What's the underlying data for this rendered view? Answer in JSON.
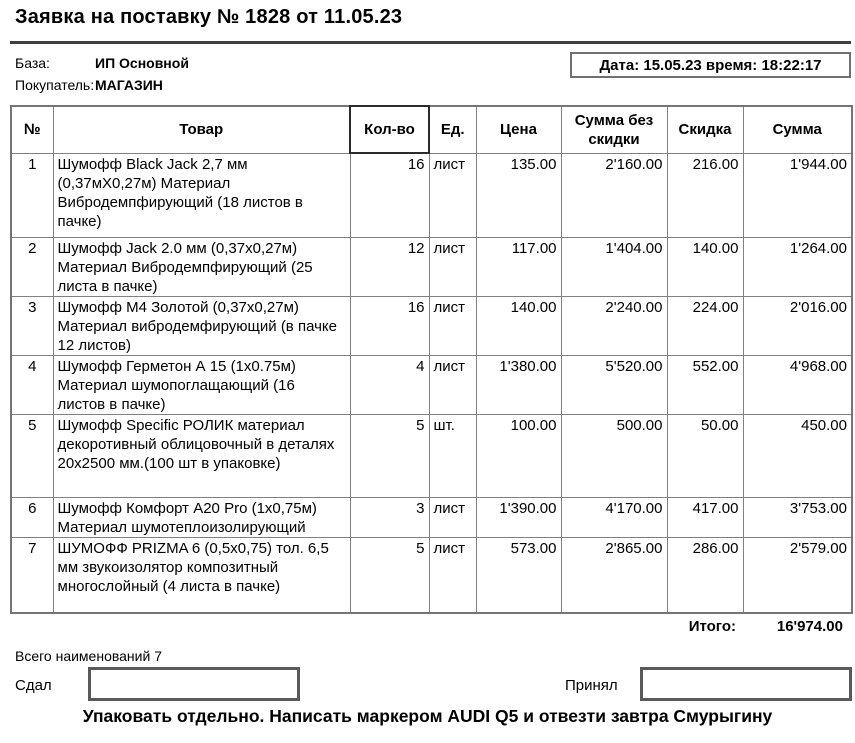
{
  "page": {
    "title": "Заявка на поставку № 1828 от 11.05.23",
    "datebox": "Дата: 15.05.23 время: 18:22:17",
    "info": [
      {
        "label": "База:",
        "value": "ИП Основной"
      },
      {
        "label": "Покупатель:",
        "value": "МАГАЗИН"
      }
    ]
  },
  "table": {
    "headers": [
      "№",
      "Товар",
      "Кол-во",
      "Ед.",
      "Цена",
      "Сумма без скидки",
      "Скидка",
      "Сумма"
    ],
    "rows": [
      {
        "num": "1",
        "product": "Шумофф Black Jack 2,7 мм (0,37мХ0,27м) Материал Вибродемпфирующий  (18 листов в пачке)",
        "qty": "16",
        "unit": "лист",
        "price": "135.00",
        "sum_no_disc": "2'160.00",
        "discount": "216.00",
        "sum": "1'944.00"
      },
      {
        "num": "2",
        "product": "Шумофф Jack 2.0 мм (0,37х0,27м) Материал Вибродемпфирующий  (25 листа в пачке)",
        "qty": "12",
        "unit": "лист",
        "price": "117.00",
        "sum_no_disc": "1'404.00",
        "discount": "140.00",
        "sum": "1'264.00"
      },
      {
        "num": "3",
        "product": "Шумофф М4 Золотой (0,37х0,27м) Материал вибродемфирующий (в пачке 12 листов)",
        "qty": "16",
        "unit": "лист",
        "price": "140.00",
        "sum_no_disc": "2'240.00",
        "discount": "224.00",
        "sum": "2'016.00"
      },
      {
        "num": "4",
        "product": "Шумофф Герметон А 15 (1х0.75м) Материал шумопоглащающий (16 листов в пачке)",
        "qty": "4",
        "unit": "лист",
        "price": "1'380.00",
        "sum_no_disc": "5'520.00",
        "discount": "552.00",
        "sum": "4'968.00"
      },
      {
        "num": "5",
        "product": "Шумофф Specific РОЛИК материал декоротивный облицовочный в деталях 20х2500 мм.(100 шт в упаковке)",
        "qty": "5",
        "unit": "шт.",
        "price": "100.00",
        "sum_no_disc": "500.00",
        "discount": "50.00",
        "sum": "450.00"
      },
      {
        "num": "6",
        "product": "Шумофф Комфорт А20 Pro (1х0,75м) Материал шумотеплоизолирующий",
        "qty": "3",
        "unit": "лист",
        "price": "1'390.00",
        "sum_no_disc": "4'170.00",
        "discount": "417.00",
        "sum": "3'753.00"
      },
      {
        "num": "7",
        "product": "ШУМОФФ PRIZMA 6 (0,5х0,75) тол. 6,5 мм звукоизолятор композитный многослойный (4 листа в пачке)",
        "qty": "5",
        "unit": "лист",
        "price": "573.00",
        "sum_no_disc": "2'865.00",
        "discount": "286.00",
        "sum": "2'579.00"
      }
    ],
    "total_label": "Итого:",
    "total_value": "16'974.00"
  },
  "footer": {
    "items_count": "Всего наименований 7",
    "handed_label": "Сдал",
    "received_label": "Принял",
    "note": "Упаковать отдельно. Написать маркером AUDI Q5 и отвезти завтра Смурыгину"
  },
  "colors": {
    "table_border": "#808080",
    "selected_cell_border": "#2b2b2b",
    "rule": "#3f3f3f",
    "text": "#000000"
  }
}
